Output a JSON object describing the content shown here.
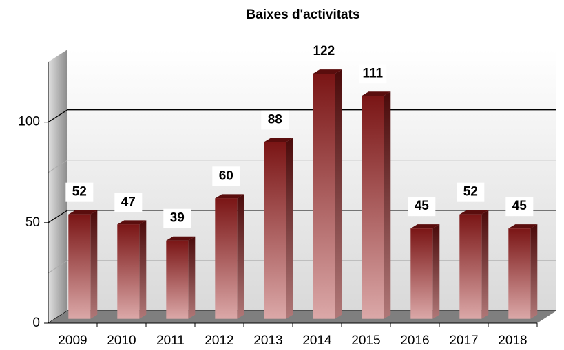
{
  "chart_data": {
    "type": "bar3d",
    "title": "Baixes d'activitats",
    "categories": [
      "2009",
      "2010",
      "2011",
      "2012",
      "2013",
      "2014",
      "2015",
      "2016",
      "2017",
      "2018"
    ],
    "values": [
      52,
      47,
      39,
      60,
      88,
      122,
      111,
      45,
      52,
      45
    ],
    "color": "#8b1a1a",
    "ylim": [
      0,
      130
    ],
    "yticks": [
      0,
      50,
      100
    ],
    "minor_yticks": [
      25,
      75
    ],
    "grid": true
  }
}
